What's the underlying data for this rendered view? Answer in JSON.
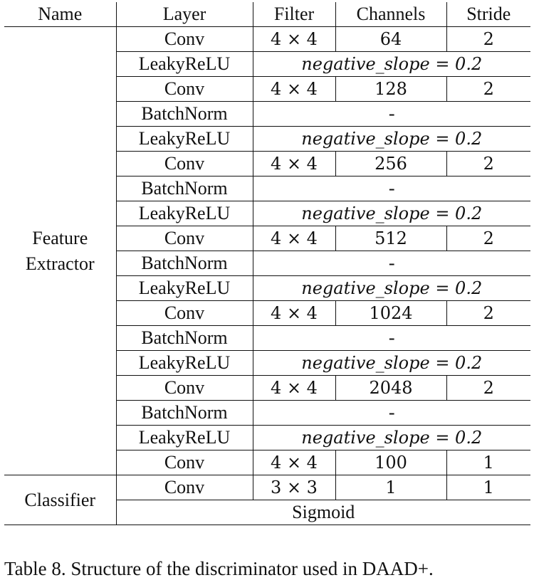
{
  "table": {
    "headers": [
      "Name",
      "Layer",
      "Filter",
      "Channels",
      "Stride"
    ],
    "feature_extractor": {
      "name_line1": "Feature",
      "name_line2": "Extractor",
      "rows": [
        {
          "layer": "Conv",
          "filter": "4 × 4",
          "channels": "64",
          "stride": "2"
        },
        {
          "layer": "LeakyReLU",
          "param": "negative_slope = 0.2"
        },
        {
          "layer": "Conv",
          "filter": "4 × 4",
          "channels": "128",
          "stride": "2"
        },
        {
          "layer": "BatchNorm",
          "param": "-"
        },
        {
          "layer": "LeakyReLU",
          "param": "negative_slope = 0.2"
        },
        {
          "layer": "Conv",
          "filter": "4 × 4",
          "channels": "256",
          "stride": "2"
        },
        {
          "layer": "BatchNorm",
          "param": "-"
        },
        {
          "layer": "LeakyReLU",
          "param": "negative_slope = 0.2"
        },
        {
          "layer": "Conv",
          "filter": "4 × 4",
          "channels": "512",
          "stride": "2"
        },
        {
          "layer": "BatchNorm",
          "param": "-"
        },
        {
          "layer": "LeakyReLU",
          "param": "negative_slope = 0.2"
        },
        {
          "layer": "Conv",
          "filter": "4 × 4",
          "channels": "1024",
          "stride": "2"
        },
        {
          "layer": "BatchNorm",
          "param": "-"
        },
        {
          "layer": "LeakyReLU",
          "param": "negative_slope = 0.2"
        },
        {
          "layer": "Conv",
          "filter": "4 × 4",
          "channels": "2048",
          "stride": "2"
        },
        {
          "layer": "BatchNorm",
          "param": "-"
        },
        {
          "layer": "LeakyReLU",
          "param": "negative_slope = 0.2"
        },
        {
          "layer": "Conv",
          "filter": "4 × 4",
          "channels": "100",
          "stride": "1"
        }
      ]
    },
    "classifier": {
      "name": "Classifier",
      "conv": {
        "layer": "Conv",
        "filter": "3 × 3",
        "channels": "1",
        "stride": "1"
      },
      "final": "Sigmoid"
    }
  },
  "caption": "Table 8. Structure of the discriminator used in DAAD+."
}
